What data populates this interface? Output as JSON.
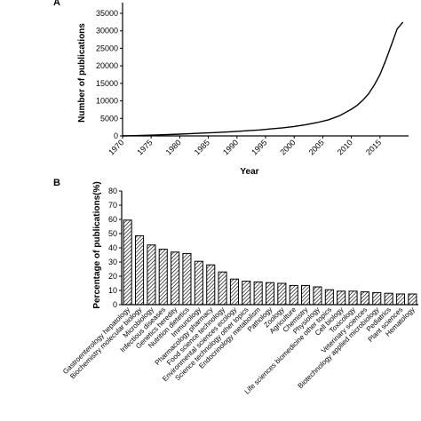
{
  "chart_data": [
    {
      "panel": "A",
      "type": "line",
      "title": "",
      "xlabel": "Year",
      "ylabel": "Number of publications",
      "xlim": [
        1970,
        2019
      ],
      "ylim": [
        0,
        35000
      ],
      "xticks": [
        1970,
        1975,
        1980,
        1985,
        1990,
        1995,
        2000,
        2005,
        2010,
        2015
      ],
      "yticks": [
        0,
        5000,
        10000,
        15000,
        20000,
        25000,
        30000,
        35000
      ],
      "x": [
        1970,
        1972,
        1974,
        1976,
        1978,
        1980,
        1982,
        1984,
        1986,
        1988,
        1990,
        1992,
        1994,
        1996,
        1998,
        2000,
        2002,
        2004,
        2006,
        2008,
        2010,
        2011,
        2012,
        2013,
        2014,
        2015,
        2016,
        2017,
        2018,
        2019
      ],
      "y": [
        0,
        80,
        180,
        280,
        380,
        500,
        650,
        800,
        950,
        1100,
        1300,
        1500,
        1700,
        2000,
        2300,
        2700,
        3200,
        3800,
        4600,
        5800,
        7600,
        8700,
        10200,
        12000,
        14500,
        17500,
        21500,
        26000,
        30500,
        32500
      ],
      "grid": false
    },
    {
      "panel": "B",
      "type": "bar",
      "title": "",
      "xlabel": "",
      "ylabel": "Percentage of publications(%)",
      "ylim": [
        0,
        80
      ],
      "yticks": [
        0,
        10,
        20,
        30,
        40,
        50,
        60,
        70,
        80
      ],
      "categories": [
        "Gastroenterology hepatology",
        "Biochemistry molecular biology",
        "Microbiology",
        "Infectious diseases",
        "Genetics heredity",
        "Nutrition dietetics",
        "Immunology",
        "Pharmacology pharmacy",
        "Food science technology",
        "Environmental sciences ecology",
        "Science technology other topics",
        "Endocrinology metabolism",
        "Pathology",
        "Zoology",
        "Agriculture",
        "Chemistry",
        "Physiology",
        "Life sciences biomedicine other topics",
        "Cell biology",
        "Toxicology",
        "Veterinary sciences",
        "Biotechnology applied microbiology",
        "Pediatrics",
        "Plant sciences",
        "Hematology"
      ],
      "values": [
        59.5,
        48.5,
        42,
        39,
        37,
        36,
        30.5,
        28,
        23,
        18,
        16.5,
        16,
        15.5,
        15,
        13.5,
        13.5,
        12.5,
        10.5,
        9.5,
        9.5,
        9,
        8.5,
        8,
        7.5,
        7.5
      ],
      "bar_fill": "hatched",
      "grid": false
    }
  ]
}
